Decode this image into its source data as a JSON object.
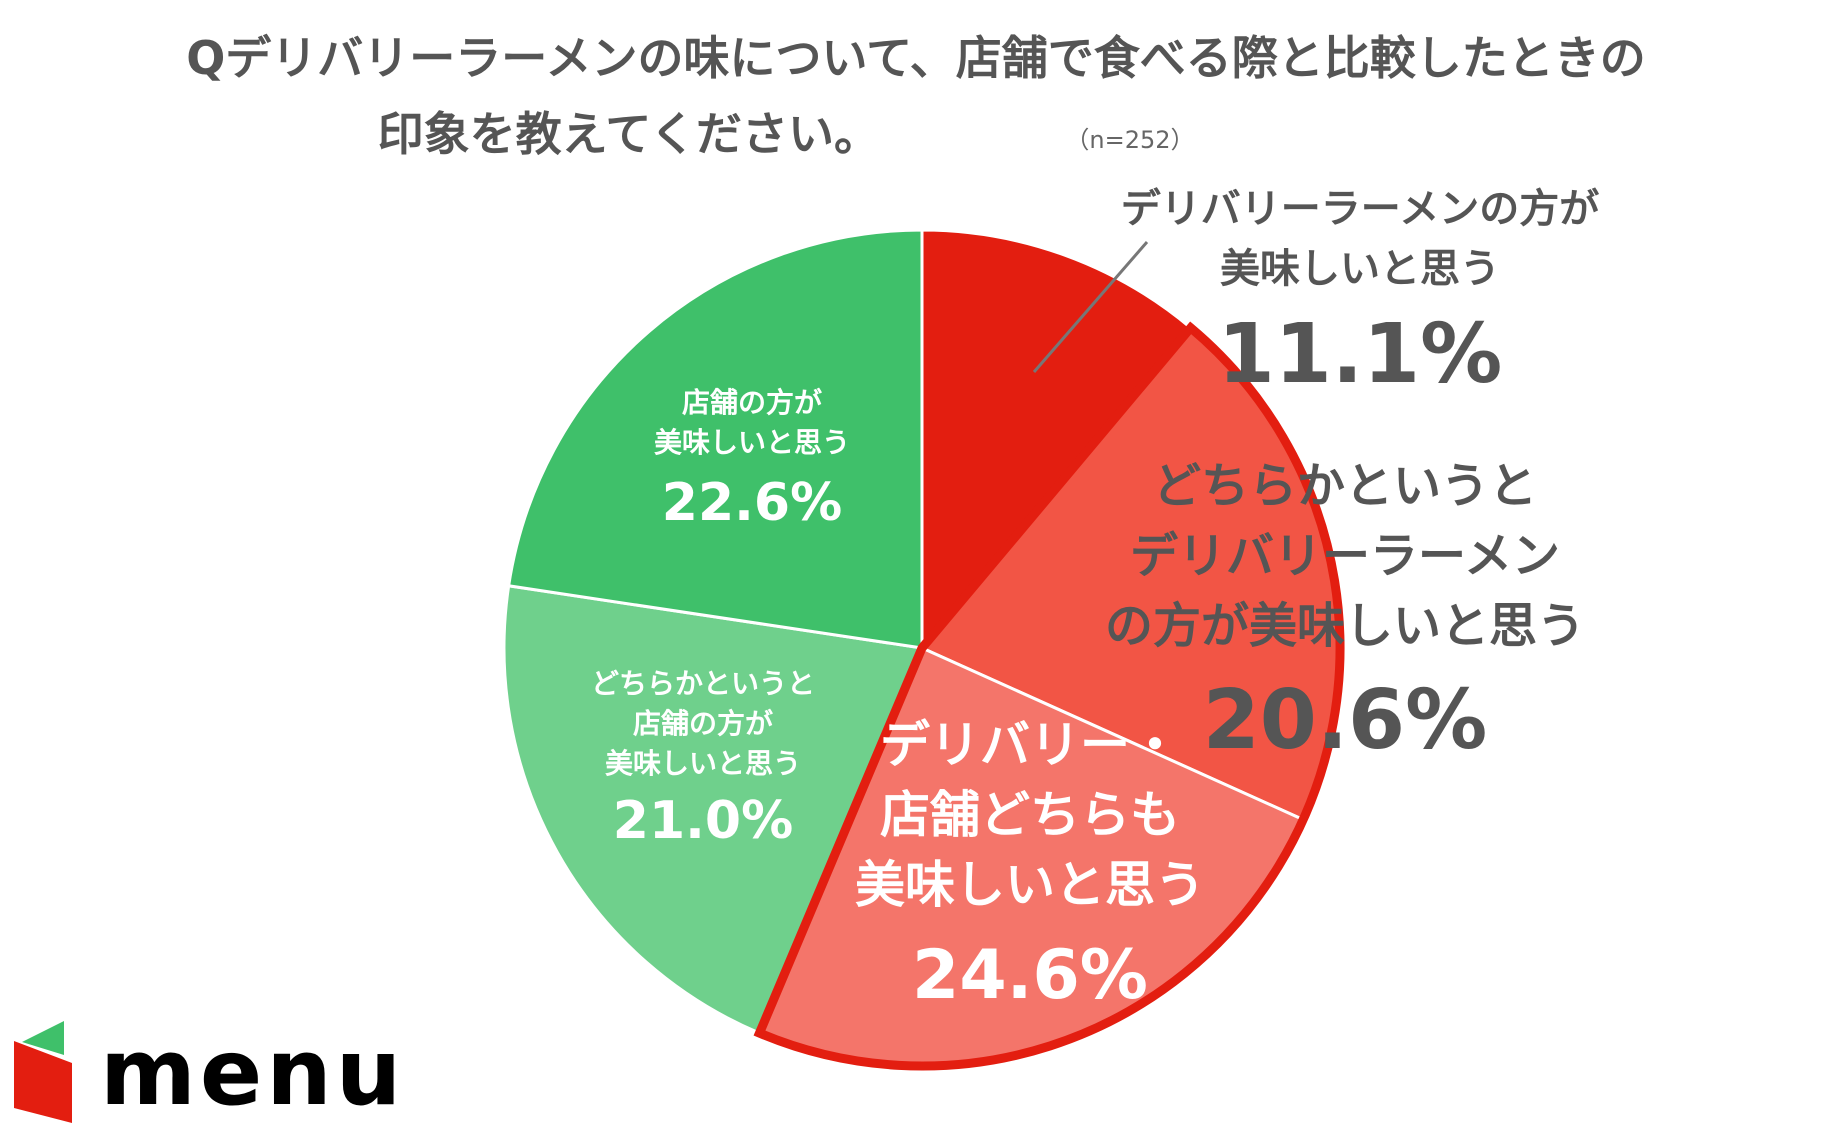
{
  "chart_data": {
    "type": "pie",
    "title_lines": [
      "Qデリバリーラーメンの味について、店舗で食べる際と比較したときの",
      "印象を教えてください。"
    ],
    "sample_note": "（n=252）",
    "start_angle_deg": 0,
    "direction": "clockwise",
    "slices": [
      {
        "label_lines": [
          "デリバリーラーメンの方が",
          "美味しいと思う"
        ],
        "value": 11.1,
        "value_label": "11.1%",
        "color": "#E31E10",
        "text_color": "#555555"
      },
      {
        "label_lines": [
          "どちらかというと",
          "デリバリーラーメン",
          "の方が美味しいと思う"
        ],
        "value": 20.6,
        "value_label": "20.6%",
        "color": "#F25545",
        "text_color": "#555555"
      },
      {
        "label_lines": [
          "デリバリー・",
          "店舗どちらも",
          "美味しいと思う"
        ],
        "value": 24.6,
        "value_label": "24.6%",
        "color": "#F4756A",
        "text_color": "#FFFFFF"
      },
      {
        "label_lines": [
          "どちらかというと",
          "店舗の方が",
          "美味しいと思う"
        ],
        "value": 21.0,
        "value_label": "21.0%",
        "color": "#6FD08C",
        "text_color": "#FFFFFF"
      },
      {
        "label_lines": [
          "店舗の方が",
          "美味しいと思う"
        ],
        "value": 22.6,
        "value_label": "22.6%",
        "color": "#3FC06A",
        "text_color": "#FFFFFF"
      }
    ],
    "highlight_outline_color": "#E31E10"
  },
  "logo": {
    "text": "menu",
    "colors": {
      "red": "#E31E10",
      "green": "#3FC06A"
    }
  }
}
